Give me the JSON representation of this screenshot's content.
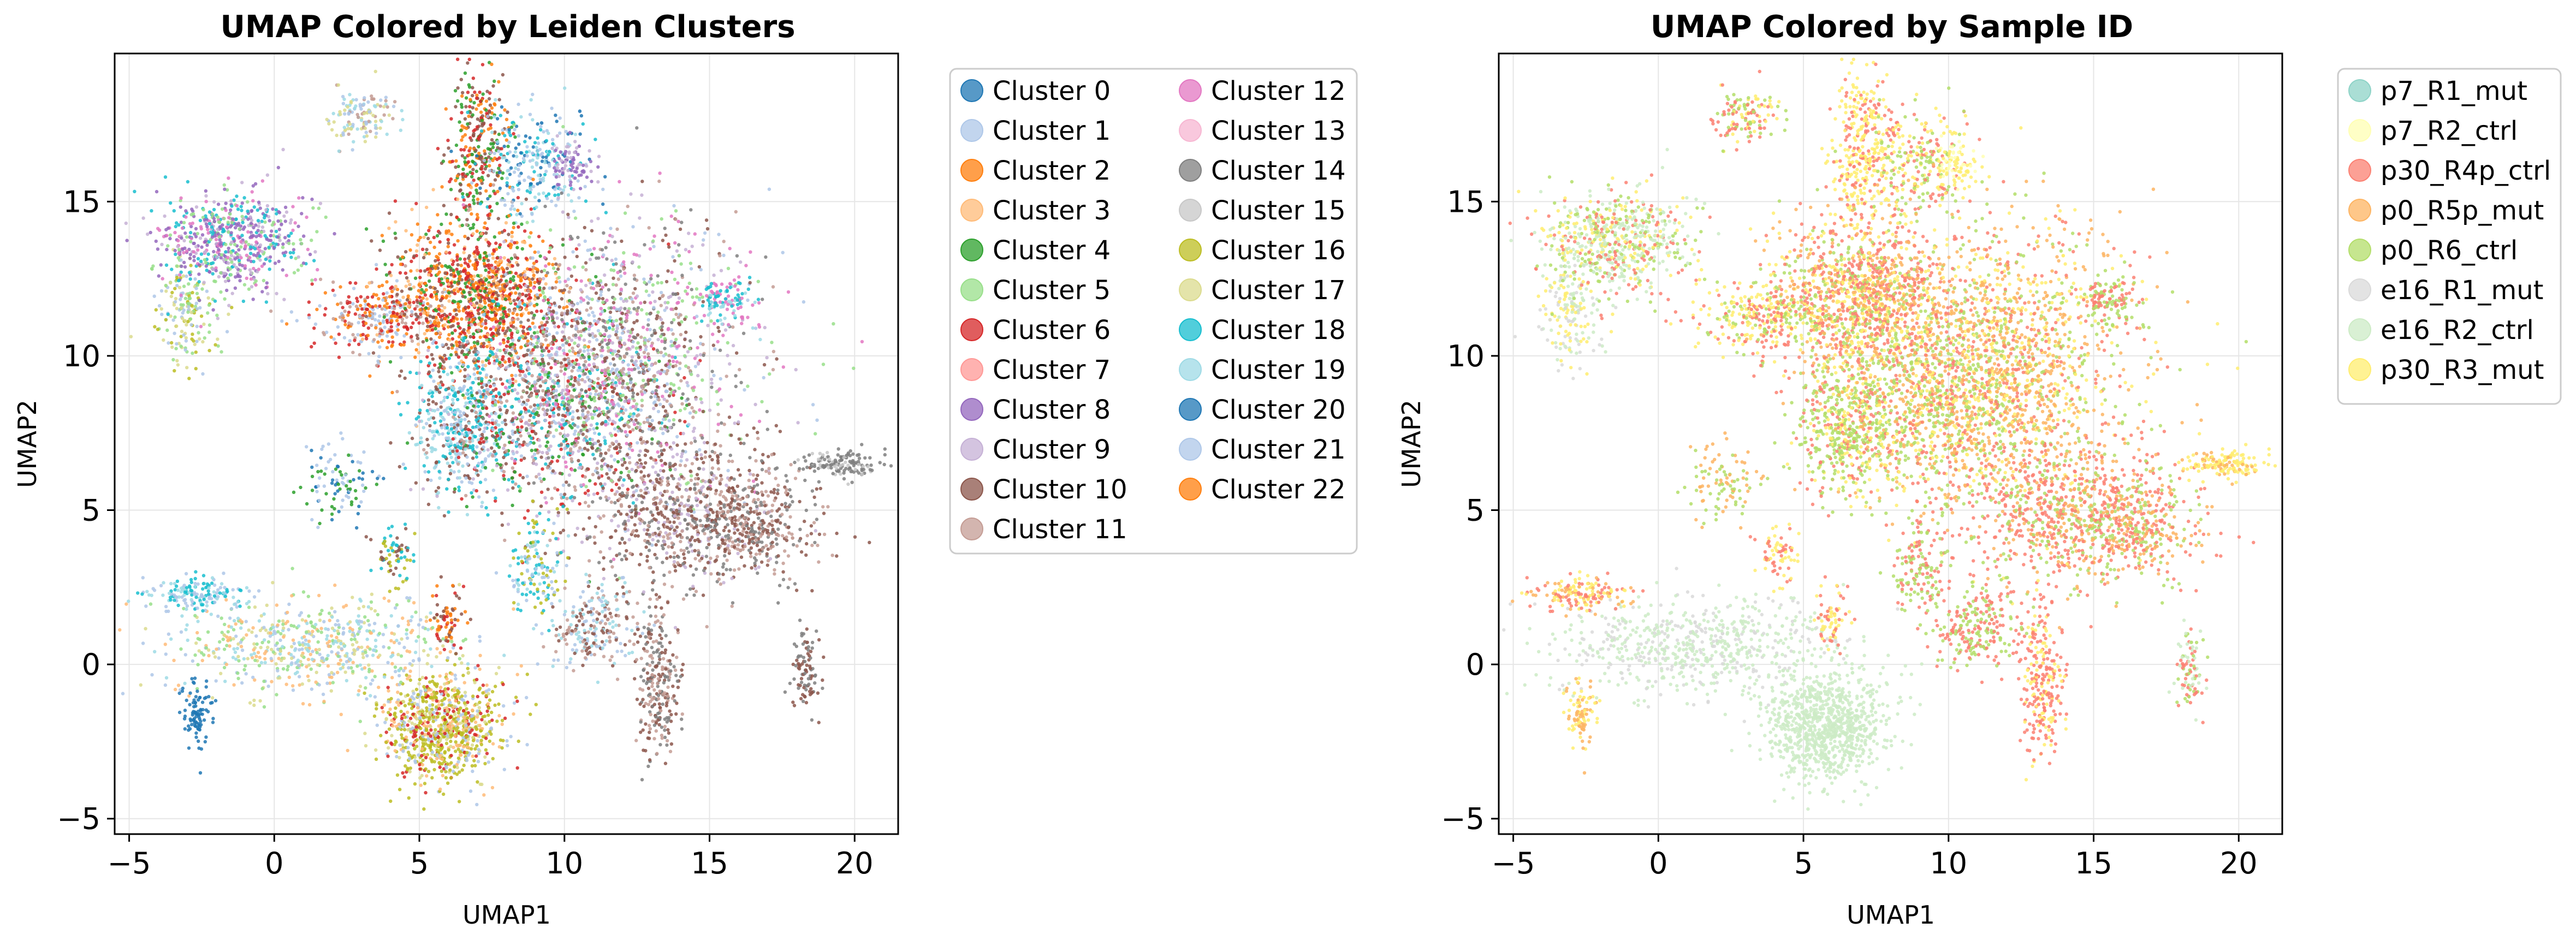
{
  "chart_data": [
    {
      "type": "scatter",
      "title": "UMAP Colored by Leiden Clusters",
      "xlabel": "UMAP1",
      "ylabel": "UMAP2",
      "xlim": [
        -5.5,
        21.5
      ],
      "ylim": [
        -5.5,
        19.8
      ],
      "xticks": [
        -5,
        0,
        5,
        10,
        15,
        20
      ],
      "yticks": [
        -5,
        0,
        5,
        10,
        15
      ],
      "grid": true,
      "legend_placement": "outside-upper-right",
      "legend_columns": 2,
      "series": [
        {
          "name": "Cluster 0",
          "color": "#1f77b4"
        },
        {
          "name": "Cluster 1",
          "color": "#aec7e8"
        },
        {
          "name": "Cluster 2",
          "color": "#ff7f0e"
        },
        {
          "name": "Cluster 3",
          "color": "#ffbb78"
        },
        {
          "name": "Cluster 4",
          "color": "#2ca02c"
        },
        {
          "name": "Cluster 5",
          "color": "#98df8a"
        },
        {
          "name": "Cluster 6",
          "color": "#d62728"
        },
        {
          "name": "Cluster 7",
          "color": "#ff9896"
        },
        {
          "name": "Cluster 8",
          "color": "#9467bd"
        },
        {
          "name": "Cluster 9",
          "color": "#c5b0d5"
        },
        {
          "name": "Cluster 10",
          "color": "#8c564b"
        },
        {
          "name": "Cluster 11",
          "color": "#c49c94"
        },
        {
          "name": "Cluster 12",
          "color": "#e377c2"
        },
        {
          "name": "Cluster 13",
          "color": "#f7b6d2"
        },
        {
          "name": "Cluster 14",
          "color": "#7f7f7f"
        },
        {
          "name": "Cluster 15",
          "color": "#c7c7c7"
        },
        {
          "name": "Cluster 16",
          "color": "#bcbd22"
        },
        {
          "name": "Cluster 17",
          "color": "#dbdb8d"
        },
        {
          "name": "Cluster 18",
          "color": "#17becf"
        },
        {
          "name": "Cluster 19",
          "color": "#9edae5"
        },
        {
          "name": "Cluster 20",
          "color": "#1f77b4"
        },
        {
          "name": "Cluster 21",
          "color": "#aec7e8"
        },
        {
          "name": "Cluster 22",
          "color": "#ff7f0e"
        }
      ],
      "regions": [
        {
          "center": [
            5.8,
            -2.0
          ],
          "spread": [
            1.0,
            0.9
          ],
          "weight": 900,
          "palette": [
            16,
            16,
            16,
            17,
            1,
            6,
            3
          ]
        },
        {
          "center": [
            1.5,
            0.6
          ],
          "spread": [
            2.6,
            0.8
          ],
          "weight": 650,
          "palette": [
            1,
            17,
            19,
            3,
            5
          ]
        },
        {
          "center": [
            -2.6,
            2.3
          ],
          "spread": [
            0.8,
            0.25
          ],
          "weight": 160,
          "palette": [
            19,
            18,
            1
          ]
        },
        {
          "center": [
            -2.7,
            -1.5
          ],
          "spread": [
            0.25,
            0.6
          ],
          "weight": 90,
          "palette": [
            0,
            0,
            20
          ]
        },
        {
          "center": [
            -3.0,
            11.5
          ],
          "spread": [
            0.5,
            0.9
          ],
          "weight": 180,
          "palette": [
            5,
            16,
            17,
            1
          ]
        },
        {
          "center": [
            -1.5,
            13.7
          ],
          "spread": [
            1.3,
            0.8
          ],
          "weight": 650,
          "palette": [
            8,
            8,
            9,
            5,
            18,
            12
          ]
        },
        {
          "center": [
            3.0,
            17.8
          ],
          "spread": [
            0.6,
            0.4
          ],
          "weight": 130,
          "palette": [
            11,
            19,
            1,
            17
          ]
        },
        {
          "center": [
            7.0,
            16.8
          ],
          "spread": [
            0.5,
            1.2
          ],
          "weight": 320,
          "palette": [
            4,
            6,
            10,
            2
          ]
        },
        {
          "center": [
            9.0,
            16.2
          ],
          "spread": [
            0.9,
            0.9
          ],
          "weight": 260,
          "palette": [
            18,
            1,
            0,
            19
          ]
        },
        {
          "center": [
            10.2,
            16.2
          ],
          "spread": [
            0.4,
            0.4
          ],
          "weight": 80,
          "palette": [
            8,
            9
          ]
        },
        {
          "center": [
            3.7,
            11.3
          ],
          "spread": [
            1.3,
            0.5
          ],
          "weight": 300,
          "palette": [
            2,
            6,
            1,
            11
          ]
        },
        {
          "center": [
            7.0,
            12.0
          ],
          "spread": [
            1.5,
            1.2
          ],
          "weight": 1200,
          "palette": [
            2,
            2,
            6,
            6,
            3,
            10,
            4
          ]
        },
        {
          "center": [
            6.4,
            7.6
          ],
          "spread": [
            0.8,
            1.1
          ],
          "weight": 450,
          "palette": [
            18,
            19,
            10,
            1
          ]
        },
        {
          "center": [
            9.5,
            8.3
          ],
          "spread": [
            2.0,
            1.6
          ],
          "weight": 1100,
          "palette": [
            6,
            1,
            10,
            18,
            9,
            11,
            4
          ]
        },
        {
          "center": [
            12.0,
            10.0
          ],
          "spread": [
            2.2,
            2.2
          ],
          "weight": 1400,
          "palette": [
            11,
            1,
            10,
            9,
            12,
            14,
            5
          ]
        },
        {
          "center": [
            13.8,
            5.0
          ],
          "spread": [
            1.8,
            1.2
          ],
          "weight": 700,
          "palette": [
            11,
            10,
            10,
            9,
            14
          ]
        },
        {
          "center": [
            16.5,
            4.5
          ],
          "spread": [
            1.2,
            0.9
          ],
          "weight": 380,
          "palette": [
            10,
            11,
            14
          ]
        },
        {
          "center": [
            19.5,
            6.5
          ],
          "spread": [
            0.7,
            0.2
          ],
          "weight": 150,
          "palette": [
            14,
            14,
            15
          ]
        },
        {
          "center": [
            15.5,
            11.8
          ],
          "spread": [
            0.5,
            0.4
          ],
          "weight": 120,
          "palette": [
            12,
            19,
            18
          ]
        },
        {
          "center": [
            13.2,
            -0.6
          ],
          "spread": [
            0.4,
            1.2
          ],
          "weight": 260,
          "palette": [
            10,
            11,
            14
          ]
        },
        {
          "center": [
            11.0,
            1.2
          ],
          "spread": [
            0.7,
            0.7
          ],
          "weight": 230,
          "palette": [
            1,
            10,
            11,
            19
          ]
        },
        {
          "center": [
            18.3,
            0.0
          ],
          "spread": [
            0.25,
            0.7
          ],
          "weight": 90,
          "palette": [
            10,
            14
          ]
        },
        {
          "center": [
            2.3,
            5.9
          ],
          "spread": [
            0.6,
            0.6
          ],
          "weight": 100,
          "palette": [
            4,
            0,
            1
          ]
        },
        {
          "center": [
            4.1,
            3.6
          ],
          "spread": [
            0.3,
            0.5
          ],
          "weight": 70,
          "palette": [
            18,
            16,
            10
          ]
        },
        {
          "center": [
            6.0,
            1.5
          ],
          "spread": [
            0.3,
            0.5
          ],
          "weight": 70,
          "palette": [
            10,
            6,
            2
          ]
        },
        {
          "center": [
            9.0,
            3.0
          ],
          "spread": [
            0.5,
            0.9
          ],
          "weight": 150,
          "palette": [
            18,
            1,
            19,
            16
          ]
        }
      ]
    },
    {
      "type": "scatter",
      "title": "UMAP Colored by Sample ID",
      "xlabel": "UMAP1",
      "ylabel": "UMAP2",
      "xlim": [
        -5.5,
        21.5
      ],
      "ylim": [
        -5.5,
        19.8
      ],
      "xticks": [
        -5,
        0,
        5,
        10,
        15,
        20
      ],
      "yticks": [
        -5,
        0,
        5,
        10,
        15
      ],
      "grid": true,
      "legend_placement": "outside-upper-right",
      "legend_columns": 1,
      "series": [
        {
          "name": "p7_R1_mut",
          "color": "#8dd3c7"
        },
        {
          "name": "p7_R2_ctrl",
          "color": "#ffffb3"
        },
        {
          "name": "p30_R4p_ctrl",
          "color": "#fb8072"
        },
        {
          "name": "p0_R5p_mut",
          "color": "#fdb462"
        },
        {
          "name": "p0_R6_ctrl",
          "color": "#b3de69"
        },
        {
          "name": "e16_R1_mut",
          "color": "#d9d9d9"
        },
        {
          "name": "e16_R2_ctrl",
          "color": "#ccebc5"
        },
        {
          "name": "p30_R3_mut",
          "color": "#ffed6f"
        }
      ],
      "regions": [
        {
          "center": [
            5.8,
            -2.0
          ],
          "spread": [
            1.0,
            0.9
          ],
          "weight": 900,
          "palette": [
            6
          ]
        },
        {
          "center": [
            1.5,
            0.6
          ],
          "spread": [
            2.6,
            0.8
          ],
          "weight": 650,
          "palette": [
            6,
            6,
            5
          ]
        },
        {
          "center": [
            -2.6,
            2.3
          ],
          "spread": [
            0.8,
            0.25
          ],
          "weight": 160,
          "palette": [
            3,
            7,
            2
          ]
        },
        {
          "center": [
            -2.7,
            -1.5
          ],
          "spread": [
            0.25,
            0.6
          ],
          "weight": 90,
          "palette": [
            7,
            3
          ]
        },
        {
          "center": [
            -3.0,
            11.5
          ],
          "spread": [
            0.5,
            0.9
          ],
          "weight": 180,
          "palette": [
            6,
            5,
            7
          ]
        },
        {
          "center": [
            -1.5,
            13.7
          ],
          "spread": [
            1.3,
            0.8
          ],
          "weight": 650,
          "palette": [
            6,
            6,
            2,
            4,
            7
          ]
        },
        {
          "center": [
            3.0,
            17.8
          ],
          "spread": [
            0.6,
            0.4
          ],
          "weight": 130,
          "palette": [
            7,
            4,
            2
          ]
        },
        {
          "center": [
            7.0,
            16.8
          ],
          "spread": [
            0.5,
            1.2
          ],
          "weight": 320,
          "palette": [
            7,
            7,
            2
          ]
        },
        {
          "center": [
            9.0,
            16.2
          ],
          "spread": [
            0.9,
            0.9
          ],
          "weight": 260,
          "palette": [
            2,
            7,
            4
          ]
        },
        {
          "center": [
            10.2,
            16.2
          ],
          "spread": [
            0.4,
            0.4
          ],
          "weight": 80,
          "palette": [
            7,
            1
          ]
        },
        {
          "center": [
            3.7,
            11.3
          ],
          "spread": [
            1.3,
            0.5
          ],
          "weight": 300,
          "palette": [
            7,
            7,
            2,
            4
          ]
        },
        {
          "center": [
            7.0,
            12.0
          ],
          "spread": [
            1.5,
            1.2
          ],
          "weight": 1200,
          "palette": [
            2,
            2,
            4,
            3,
            7
          ]
        },
        {
          "center": [
            6.4,
            7.6
          ],
          "spread": [
            0.8,
            1.1
          ],
          "weight": 450,
          "palette": [
            4,
            4,
            2,
            7
          ]
        },
        {
          "center": [
            9.5,
            8.3
          ],
          "spread": [
            2.0,
            1.6
          ],
          "weight": 1100,
          "palette": [
            4,
            4,
            3,
            2,
            7
          ]
        },
        {
          "center": [
            12.0,
            10.0
          ],
          "spread": [
            2.2,
            2.2
          ],
          "weight": 1400,
          "palette": [
            3,
            3,
            4,
            2,
            7
          ]
        },
        {
          "center": [
            13.8,
            5.0
          ],
          "spread": [
            1.8,
            1.2
          ],
          "weight": 700,
          "palette": [
            2,
            2,
            3,
            4
          ]
        },
        {
          "center": [
            16.5,
            4.5
          ],
          "spread": [
            1.2,
            0.9
          ],
          "weight": 380,
          "palette": [
            2,
            3,
            4
          ]
        },
        {
          "center": [
            19.5,
            6.5
          ],
          "spread": [
            0.7,
            0.2
          ],
          "weight": 150,
          "palette": [
            7,
            7,
            3
          ]
        },
        {
          "center": [
            15.5,
            11.8
          ],
          "spread": [
            0.5,
            0.4
          ],
          "weight": 120,
          "palette": [
            4,
            2
          ]
        },
        {
          "center": [
            13.2,
            -0.6
          ],
          "spread": [
            0.4,
            1.2
          ],
          "weight": 260,
          "palette": [
            2,
            2,
            7
          ]
        },
        {
          "center": [
            11.0,
            1.2
          ],
          "spread": [
            0.7,
            0.7
          ],
          "weight": 230,
          "palette": [
            4,
            2
          ]
        },
        {
          "center": [
            18.3,
            0.0
          ],
          "spread": [
            0.25,
            0.7
          ],
          "weight": 90,
          "palette": [
            2,
            4,
            6
          ]
        },
        {
          "center": [
            2.3,
            5.9
          ],
          "spread": [
            0.6,
            0.6
          ],
          "weight": 100,
          "palette": [
            4,
            3
          ]
        },
        {
          "center": [
            4.1,
            3.6
          ],
          "spread": [
            0.3,
            0.5
          ],
          "weight": 70,
          "palette": [
            7,
            2
          ]
        },
        {
          "center": [
            6.0,
            1.5
          ],
          "spread": [
            0.3,
            0.5
          ],
          "weight": 70,
          "palette": [
            2,
            7
          ]
        },
        {
          "center": [
            9.0,
            3.0
          ],
          "spread": [
            0.5,
            0.9
          ],
          "weight": 150,
          "palette": [
            4,
            2
          ]
        }
      ]
    }
  ]
}
